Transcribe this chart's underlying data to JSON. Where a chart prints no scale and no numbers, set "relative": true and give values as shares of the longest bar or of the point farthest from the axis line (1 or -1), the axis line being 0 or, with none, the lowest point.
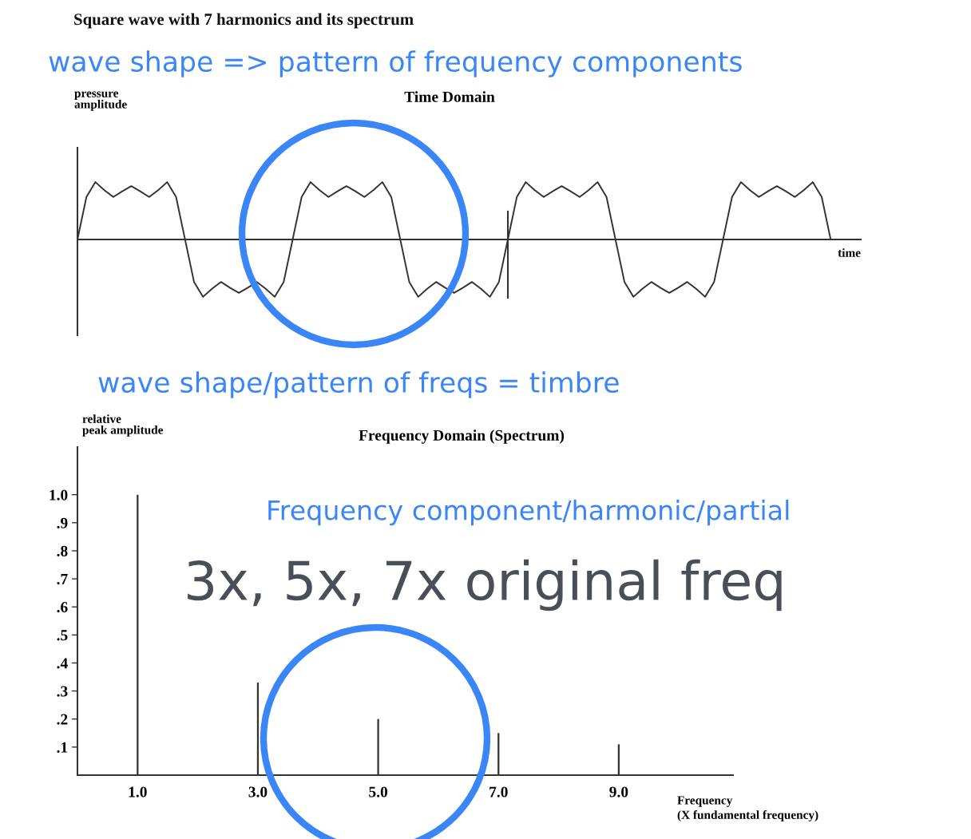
{
  "chart_data": [
    {
      "type": "line",
      "title": "Time Domain",
      "ylabel": "pressure\namplitude",
      "xlabel": "time",
      "relative": true,
      "legend": false,
      "grid": false,
      "marker": "none",
      "line_style": "solid",
      "annotations": [
        "Square wave with 7 harmonics and its spectrum",
        "wave shape => pattern of frequency components"
      ],
      "categories": [
        null,
        null,
        null,
        null,
        null,
        null,
        null,
        null,
        null,
        null,
        null,
        null,
        null,
        null,
        null,
        null,
        null,
        null,
        null,
        null,
        null,
        null,
        null,
        null,
        null,
        null,
        null,
        null,
        null,
        null,
        null,
        null,
        null,
        null,
        null,
        null,
        null,
        null,
        null,
        null,
        null,
        null,
        null,
        null,
        null,
        null,
        null,
        null,
        null,
        null,
        null,
        null,
        null,
        null,
        null,
        null,
        null,
        null,
        null,
        null,
        null,
        null,
        null,
        null,
        null,
        null,
        null,
        null,
        null,
        null,
        null,
        null,
        null,
        null,
        null,
        null,
        null,
        null,
        null,
        null,
        null,
        null,
        null,
        null,
        null
      ],
      "series": [
        {
          "color": "#333333",
          "values": [
            0,
            0.74,
            1,
            0.86,
            0.74,
            0.84,
            0.93,
            0.84,
            0.74,
            0.86,
            1,
            0.74,
            0,
            -0.74,
            -1,
            -0.86,
            -0.74,
            -0.84,
            -0.93,
            -0.84,
            -0.74,
            -0.86,
            -1,
            -0.74,
            0,
            0.74,
            1,
            0.86,
            0.74,
            0.84,
            0.93,
            0.84,
            0.74,
            0.86,
            1,
            0.74,
            0,
            -0.74,
            -1,
            -0.86,
            -0.74,
            -0.84,
            -0.93,
            -0.84,
            -0.74,
            -0.86,
            -1,
            -0.74,
            0,
            0.74,
            1,
            0.86,
            0.74,
            0.84,
            0.93,
            0.84,
            0.74,
            0.86,
            1,
            0.74,
            0,
            -0.74,
            -1,
            -0.86,
            -0.74,
            -0.84,
            -0.93,
            -0.84,
            -0.74,
            -0.86,
            -1,
            -0.74,
            0,
            0.74,
            1,
            0.86,
            0.74,
            0.84,
            0.93,
            0.84,
            0.74,
            0.86,
            1,
            0.74,
            0
          ]
        }
      ]
    },
    {
      "type": "bar",
      "title": "Frequency Domain (Spectrum)",
      "ylabel": "relative\npeak amplitude",
      "xlabel": "Frequency\n(X fundamental frequency)",
      "legend": false,
      "grid": false,
      "annotations": [
        "wave shape/pattern of freqs = timbre",
        "Frequency component/harmonic/partial",
        "3x, 5x, 7x original freq"
      ],
      "x": [
        1,
        3,
        5,
        7,
        9
      ],
      "series": [
        {
          "color": "#333333",
          "values": [
            1.0,
            0.33,
            0.2,
            0.15,
            0.11
          ]
        }
      ],
      "xlim": [
        0,
        10.9
      ],
      "xticks": [
        {
          "value": 1,
          "label": "1.0"
        },
        {
          "value": 3,
          "label": "3.0"
        },
        {
          "value": 5,
          "label": "5.0"
        },
        {
          "value": 7,
          "label": "7.0"
        },
        {
          "value": 9,
          "label": "9.0"
        }
      ],
      "ylim": [
        0,
        1.17
      ],
      "yticks": [
        {
          "value": 0.1,
          "label": ".1"
        },
        {
          "value": 0.2,
          "label": ".2"
        },
        {
          "value": 0.3,
          "label": ".3"
        },
        {
          "value": 0.4,
          "label": ".4"
        },
        {
          "value": 0.5,
          "label": ".5"
        },
        {
          "value": 0.6,
          "label": ".6"
        },
        {
          "value": 0.7,
          "label": ".7"
        },
        {
          "value": 0.8,
          "label": ".8"
        },
        {
          "value": 0.9,
          "label": ".9"
        },
        {
          "value": 1.0,
          "label": "1.0"
        }
      ]
    }
  ]
}
